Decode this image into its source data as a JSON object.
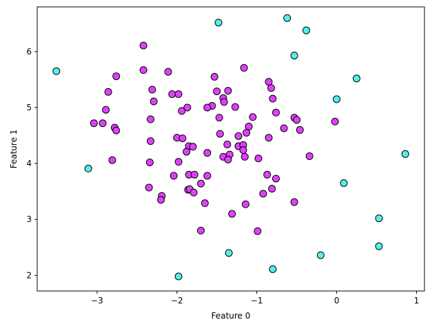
{
  "chart_data": {
    "type": "scatter",
    "xlabel": "Feature 0",
    "ylabel": "Feature 1",
    "xlim": [
      -3.75,
      1.1
    ],
    "ylim": [
      1.72,
      6.8
    ],
    "xticks": [
      -3,
      -2,
      -1,
      0,
      1
    ],
    "yticks": [
      2,
      3,
      4,
      5,
      6
    ],
    "grid": false,
    "colors": {
      "class_0": "#E040FB",
      "class_1": "#4FF0EE",
      "edge": "#000000"
    },
    "series": [
      {
        "color_key": "class_0",
        "points": [
          [
            -2.42,
            6.11
          ],
          [
            -2.42,
            5.67
          ],
          [
            -2.76,
            5.56
          ],
          [
            -2.11,
            5.64
          ],
          [
            -2.86,
            5.28
          ],
          [
            -2.31,
            5.32
          ],
          [
            -2.06,
            5.24
          ],
          [
            -1.98,
            5.24
          ],
          [
            -2.29,
            5.11
          ],
          [
            -2.89,
            4.96
          ],
          [
            -1.94,
            4.94
          ],
          [
            -1.87,
            5.0
          ],
          [
            -3.04,
            4.72
          ],
          [
            -2.93,
            4.72
          ],
          [
            -2.33,
            4.79
          ],
          [
            -2.78,
            4.64
          ],
          [
            -2.76,
            4.59
          ],
          [
            -2.0,
            4.46
          ],
          [
            -1.93,
            4.45
          ],
          [
            -2.33,
            4.4
          ],
          [
            -1.85,
            4.31
          ],
          [
            -1.8,
            4.3
          ],
          [
            -1.88,
            4.21
          ],
          [
            -2.81,
            4.06
          ],
          [
            -2.34,
            4.02
          ],
          [
            -1.98,
            4.03
          ],
          [
            -2.04,
            3.78
          ],
          [
            -1.85,
            3.8
          ],
          [
            -1.78,
            3.8
          ],
          [
            -1.62,
            3.78
          ],
          [
            -1.7,
            3.64
          ],
          [
            -2.35,
            3.57
          ],
          [
            -1.86,
            3.53
          ],
          [
            -1.84,
            3.54
          ],
          [
            -1.79,
            3.48
          ],
          [
            -2.19,
            3.42
          ],
          [
            -2.2,
            3.35
          ],
          [
            -1.65,
            3.29
          ],
          [
            -1.7,
            2.8
          ],
          [
            -1.53,
            5.55
          ],
          [
            -1.5,
            5.29
          ],
          [
            -1.36,
            5.3
          ],
          [
            -1.42,
            5.17
          ],
          [
            -1.41,
            5.1
          ],
          [
            -1.56,
            5.03
          ],
          [
            -1.62,
            5.0
          ],
          [
            -1.27,
            5.01
          ],
          [
            -1.16,
            5.71
          ],
          [
            -1.05,
            4.83
          ],
          [
            -1.47,
            4.82
          ],
          [
            -1.1,
            4.66
          ],
          [
            -1.46,
            4.53
          ],
          [
            -1.13,
            4.55
          ],
          [
            -1.23,
            4.49
          ],
          [
            -1.37,
            4.34
          ],
          [
            -1.23,
            4.31
          ],
          [
            -1.17,
            4.33
          ],
          [
            -1.17,
            4.24
          ],
          [
            -1.34,
            4.16
          ],
          [
            -1.42,
            4.12
          ],
          [
            -1.15,
            4.12
          ],
          [
            -1.36,
            4.07
          ],
          [
            -1.62,
            4.19
          ],
          [
            -0.98,
            4.09
          ],
          [
            -0.85,
            5.46
          ],
          [
            -0.82,
            5.35
          ],
          [
            -0.8,
            5.16
          ],
          [
            -0.76,
            4.91
          ],
          [
            -0.66,
            4.63
          ],
          [
            -0.85,
            4.46
          ],
          [
            -0.53,
            4.82
          ],
          [
            -0.5,
            4.78
          ],
          [
            -0.46,
            4.6
          ],
          [
            -0.34,
            4.13
          ],
          [
            -0.02,
            4.75
          ],
          [
            -0.87,
            3.8
          ],
          [
            -0.76,
            3.73
          ],
          [
            -0.81,
            3.55
          ],
          [
            -0.92,
            3.46
          ],
          [
            -1.14,
            3.27
          ],
          [
            -1.31,
            3.1
          ],
          [
            -0.53,
            3.31
          ],
          [
            -0.99,
            2.79
          ]
        ]
      },
      {
        "color_key": "class_1",
        "points": [
          [
            -3.51,
            5.65
          ],
          [
            -1.48,
            6.52
          ],
          [
            -0.62,
            6.6
          ],
          [
            -0.38,
            6.38
          ],
          [
            -0.53,
            5.93
          ],
          [
            0.25,
            5.52
          ],
          [
            0.0,
            5.15
          ],
          [
            -3.11,
            3.91
          ],
          [
            0.86,
            4.17
          ],
          [
            0.09,
            3.65
          ],
          [
            0.53,
            3.02
          ],
          [
            0.53,
            2.52
          ],
          [
            -1.35,
            2.4
          ],
          [
            -0.2,
            2.36
          ],
          [
            -0.8,
            2.11
          ],
          [
            -1.98,
            1.98
          ]
        ]
      }
    ]
  }
}
